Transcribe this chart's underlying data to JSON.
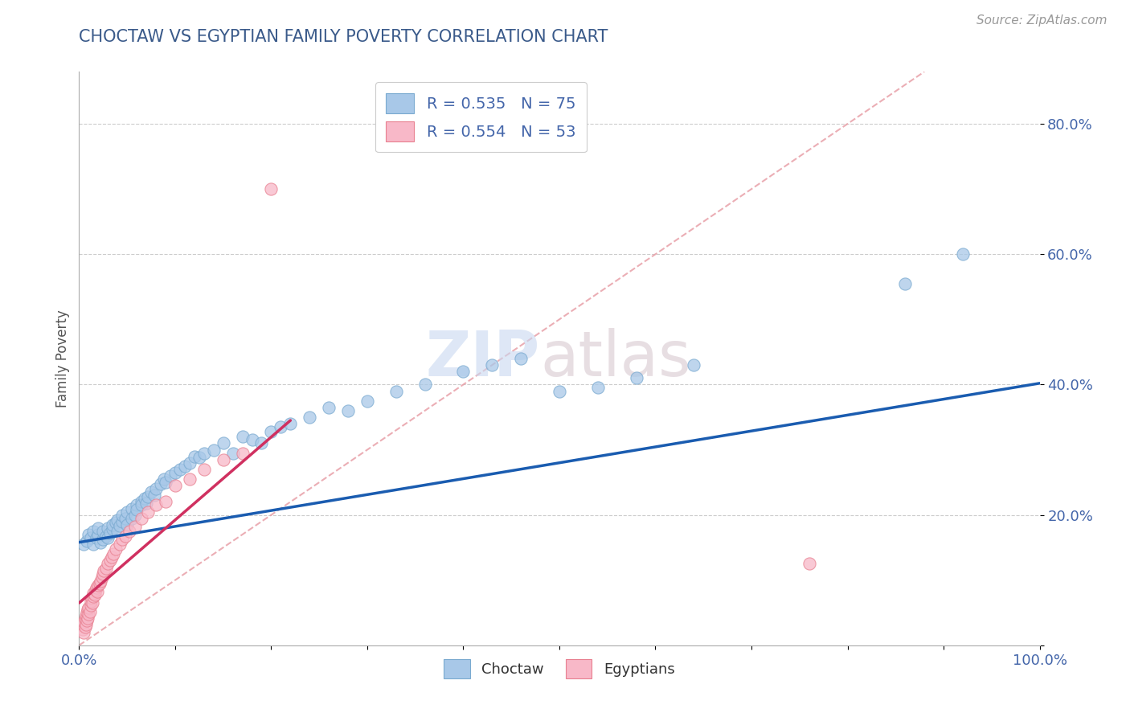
{
  "title": "CHOCTAW VS EGYPTIAN FAMILY POVERTY CORRELATION CHART",
  "source_text": "Source: ZipAtlas.com",
  "ylabel": "Family Poverty",
  "choctaw_R": 0.535,
  "choctaw_N": 75,
  "egyptian_R": 0.554,
  "egyptian_N": 53,
  "choctaw_color": "#a8c8e8",
  "choctaw_edge": "#7aaad0",
  "egyptian_color": "#f8b8c8",
  "egyptian_edge": "#e88090",
  "trend_blue": "#1a5cb0",
  "trend_pink": "#d03060",
  "diag_color": "#e8a0a8",
  "title_color": "#3a5a8a",
  "axis_color": "#4466aa",
  "background": "#ffffff",
  "xlim": [
    0.0,
    1.0
  ],
  "ylim": [
    0.0,
    0.88
  ],
  "choctaw_x": [
    0.005,
    0.008,
    0.01,
    0.012,
    0.015,
    0.015,
    0.018,
    0.02,
    0.02,
    0.022,
    0.025,
    0.025,
    0.028,
    0.03,
    0.03,
    0.032,
    0.035,
    0.035,
    0.038,
    0.04,
    0.04,
    0.042,
    0.045,
    0.045,
    0.048,
    0.05,
    0.05,
    0.055,
    0.055,
    0.058,
    0.06,
    0.06,
    0.065,
    0.065,
    0.068,
    0.07,
    0.072,
    0.075,
    0.078,
    0.08,
    0.085,
    0.088,
    0.09,
    0.095,
    0.1,
    0.105,
    0.11,
    0.115,
    0.12,
    0.125,
    0.13,
    0.14,
    0.15,
    0.16,
    0.17,
    0.18,
    0.19,
    0.2,
    0.21,
    0.22,
    0.24,
    0.26,
    0.28,
    0.3,
    0.33,
    0.36,
    0.4,
    0.43,
    0.46,
    0.5,
    0.54,
    0.58,
    0.64,
    0.86,
    0.92
  ],
  "choctaw_y": [
    0.155,
    0.16,
    0.17,
    0.165,
    0.175,
    0.155,
    0.165,
    0.17,
    0.18,
    0.158,
    0.162,
    0.175,
    0.168,
    0.18,
    0.165,
    0.172,
    0.178,
    0.185,
    0.188,
    0.192,
    0.175,
    0.183,
    0.19,
    0.2,
    0.195,
    0.205,
    0.185,
    0.21,
    0.195,
    0.2,
    0.215,
    0.208,
    0.22,
    0.215,
    0.225,
    0.218,
    0.228,
    0.235,
    0.23,
    0.24,
    0.248,
    0.255,
    0.25,
    0.26,
    0.265,
    0.27,
    0.275,
    0.28,
    0.29,
    0.288,
    0.295,
    0.3,
    0.31,
    0.295,
    0.32,
    0.315,
    0.31,
    0.328,
    0.335,
    0.34,
    0.35,
    0.365,
    0.36,
    0.375,
    0.39,
    0.4,
    0.42,
    0.43,
    0.44,
    0.39,
    0.395,
    0.41,
    0.43,
    0.555,
    0.6
  ],
  "egyptian_x": [
    0.003,
    0.004,
    0.005,
    0.005,
    0.006,
    0.006,
    0.007,
    0.007,
    0.008,
    0.008,
    0.009,
    0.009,
    0.01,
    0.01,
    0.011,
    0.012,
    0.012,
    0.013,
    0.014,
    0.015,
    0.015,
    0.016,
    0.017,
    0.018,
    0.019,
    0.02,
    0.021,
    0.022,
    0.024,
    0.025,
    0.026,
    0.028,
    0.03,
    0.032,
    0.034,
    0.036,
    0.038,
    0.042,
    0.045,
    0.048,
    0.052,
    0.058,
    0.065,
    0.072,
    0.08,
    0.09,
    0.1,
    0.115,
    0.13,
    0.15,
    0.17,
    0.2,
    0.76
  ],
  "egyptian_y": [
    0.03,
    0.025,
    0.02,
    0.035,
    0.04,
    0.028,
    0.032,
    0.045,
    0.038,
    0.05,
    0.042,
    0.055,
    0.048,
    0.058,
    0.052,
    0.062,
    0.068,
    0.072,
    0.065,
    0.075,
    0.08,
    0.078,
    0.085,
    0.088,
    0.082,
    0.092,
    0.095,
    0.098,
    0.105,
    0.11,
    0.115,
    0.118,
    0.125,
    0.13,
    0.135,
    0.14,
    0.148,
    0.155,
    0.162,
    0.168,
    0.175,
    0.182,
    0.195,
    0.205,
    0.215,
    0.22,
    0.245,
    0.255,
    0.27,
    0.285,
    0.295,
    0.7,
    0.125
  ],
  "choctaw_trend_x": [
    0.0,
    1.0
  ],
  "choctaw_trend_y": [
    0.158,
    0.402
  ],
  "egyptian_trend_x": [
    0.0,
    0.22
  ],
  "egyptian_trend_y": [
    0.065,
    0.345
  ],
  "watermark_zip": "ZIP",
  "watermark_atlas": "atlas",
  "legend_r1": "R = 0.535   N = 75",
  "legend_r2": "R = 0.554   N = 53"
}
